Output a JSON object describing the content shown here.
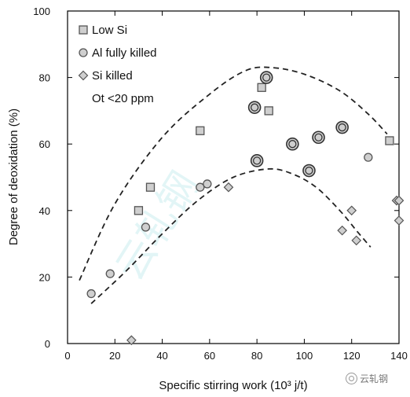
{
  "chart_data": {
    "type": "scatter",
    "xlabel": "Specific stirring work (10³ j/t)",
    "ylabel": "Degree of deoxidation (%)",
    "xlim": [
      0,
      140
    ],
    "ylim": [
      0,
      100
    ],
    "x_ticks": [
      0,
      20,
      40,
      60,
      80,
      100,
      120,
      140
    ],
    "y_ticks": [
      0,
      20,
      40,
      60,
      80,
      100
    ],
    "grid": false,
    "legend_position": "top-left",
    "note": "Ot <20 ppm",
    "series": [
      {
        "name": "Low Si",
        "marker": "square",
        "points": [
          [
            30,
            40
          ],
          [
            35,
            47
          ],
          [
            56,
            64
          ],
          [
            82,
            77
          ],
          [
            85,
            70
          ],
          [
            136,
            61
          ]
        ]
      },
      {
        "name": "Al fully killed",
        "marker": "circle",
        "points": [
          [
            10,
            15
          ],
          [
            18,
            21
          ],
          [
            33,
            35
          ],
          [
            56,
            47
          ],
          [
            59,
            48
          ],
          [
            79,
            71
          ],
          [
            80,
            55
          ],
          [
            84,
            80
          ],
          [
            95,
            60
          ],
          [
            102,
            52
          ],
          [
            106,
            62
          ],
          [
            116,
            65
          ],
          [
            127,
            56
          ]
        ],
        "double_ring_points": [
          [
            79,
            71
          ],
          [
            80,
            55
          ],
          [
            84,
            80
          ],
          [
            95,
            60
          ],
          [
            102,
            52
          ],
          [
            106,
            62
          ],
          [
            116,
            65
          ]
        ]
      },
      {
        "name": "Si killed",
        "marker": "diamond",
        "points": [
          [
            27,
            1
          ],
          [
            68,
            47
          ],
          [
            116,
            34
          ],
          [
            120,
            40
          ],
          [
            122,
            31
          ],
          [
            139,
            43
          ],
          [
            140,
            43
          ],
          [
            140,
            37
          ]
        ]
      }
    ],
    "envelopes": [
      {
        "style": "dashed",
        "points": [
          [
            5,
            19
          ],
          [
            20,
            42
          ],
          [
            40,
            62
          ],
          [
            60,
            75
          ],
          [
            75,
            82
          ],
          [
            86,
            83
          ],
          [
            100,
            81
          ],
          [
            115,
            76
          ],
          [
            127,
            69
          ],
          [
            135,
            63
          ]
        ]
      },
      {
        "style": "dashed",
        "points": [
          [
            10,
            12
          ],
          [
            25,
            22
          ],
          [
            40,
            33
          ],
          [
            55,
            43
          ],
          [
            70,
            50
          ],
          [
            85,
            52.5
          ],
          [
            95,
            51
          ],
          [
            105,
            47
          ],
          [
            115,
            40
          ],
          [
            122,
            34
          ],
          [
            128,
            29
          ]
        ]
      }
    ],
    "colors": {
      "marker_fill": "#cfcfcf",
      "marker_stroke": "#555555",
      "axis": "#000000"
    }
  },
  "watermark": {
    "text": "云轧钢",
    "brand_text": "云轧钢"
  }
}
